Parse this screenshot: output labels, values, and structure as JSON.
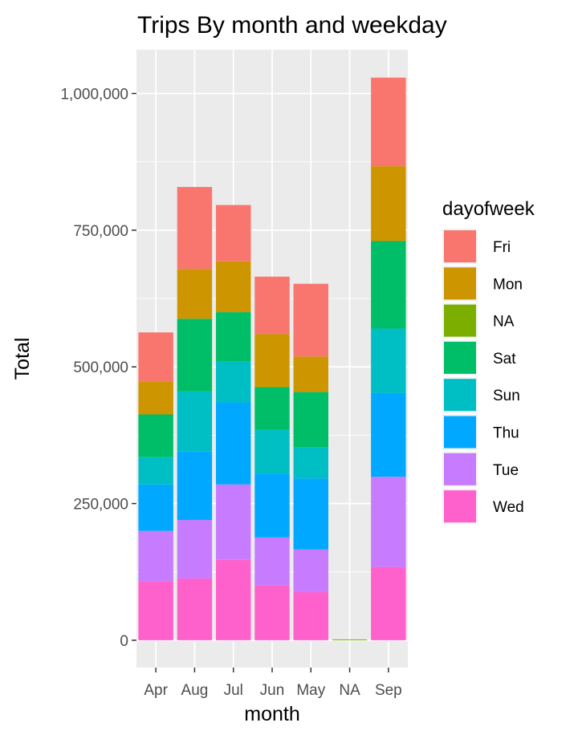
{
  "chart_data": {
    "type": "bar",
    "stacked": true,
    "title": "Trips By month and weekday",
    "xlabel": "month",
    "ylabel": "Total",
    "categories": [
      "Apr",
      "Aug",
      "Jul",
      "Jun",
      "May",
      "NA",
      "Sep"
    ],
    "ylim": [
      -50000,
      1080000
    ],
    "yticks": [
      0,
      250000,
      500000,
      750000,
      1000000
    ],
    "ytick_labels": [
      "0",
      "250,000",
      "500,000",
      "750,000",
      "1,000,000"
    ],
    "grid": true,
    "legend_position": "right",
    "legend_title": "dayofweek",
    "series": [
      {
        "name": "Fri",
        "color": "#F8766D",
        "values": [
          90000,
          150000,
          103000,
          105000,
          133000,
          0,
          162000
        ]
      },
      {
        "name": "Mon",
        "color": "#CD9600",
        "values": [
          60000,
          91000,
          93000,
          97000,
          65000,
          0,
          137000
        ]
      },
      {
        "name": "NA",
        "color": "#7CAE00",
        "values": [
          0,
          0,
          0,
          0,
          0,
          1500,
          0
        ]
      },
      {
        "name": "Sat",
        "color": "#00BE67",
        "values": [
          78000,
          133000,
          90000,
          78000,
          101000,
          0,
          160000
        ]
      },
      {
        "name": "Sun",
        "color": "#00BFC4",
        "values": [
          50000,
          110000,
          75000,
          80000,
          57000,
          0,
          118000
        ]
      },
      {
        "name": "Thu",
        "color": "#00A9FF",
        "values": [
          85000,
          125000,
          150000,
          117000,
          130000,
          0,
          153000
        ]
      },
      {
        "name": "Tue",
        "color": "#C77CFF",
        "values": [
          92000,
          107000,
          138000,
          88000,
          78000,
          0,
          165000
        ]
      },
      {
        "name": "Wed",
        "color": "#FF61CC",
        "values": [
          108000,
          113000,
          147000,
          100000,
          88000,
          0,
          134000
        ]
      }
    ]
  }
}
